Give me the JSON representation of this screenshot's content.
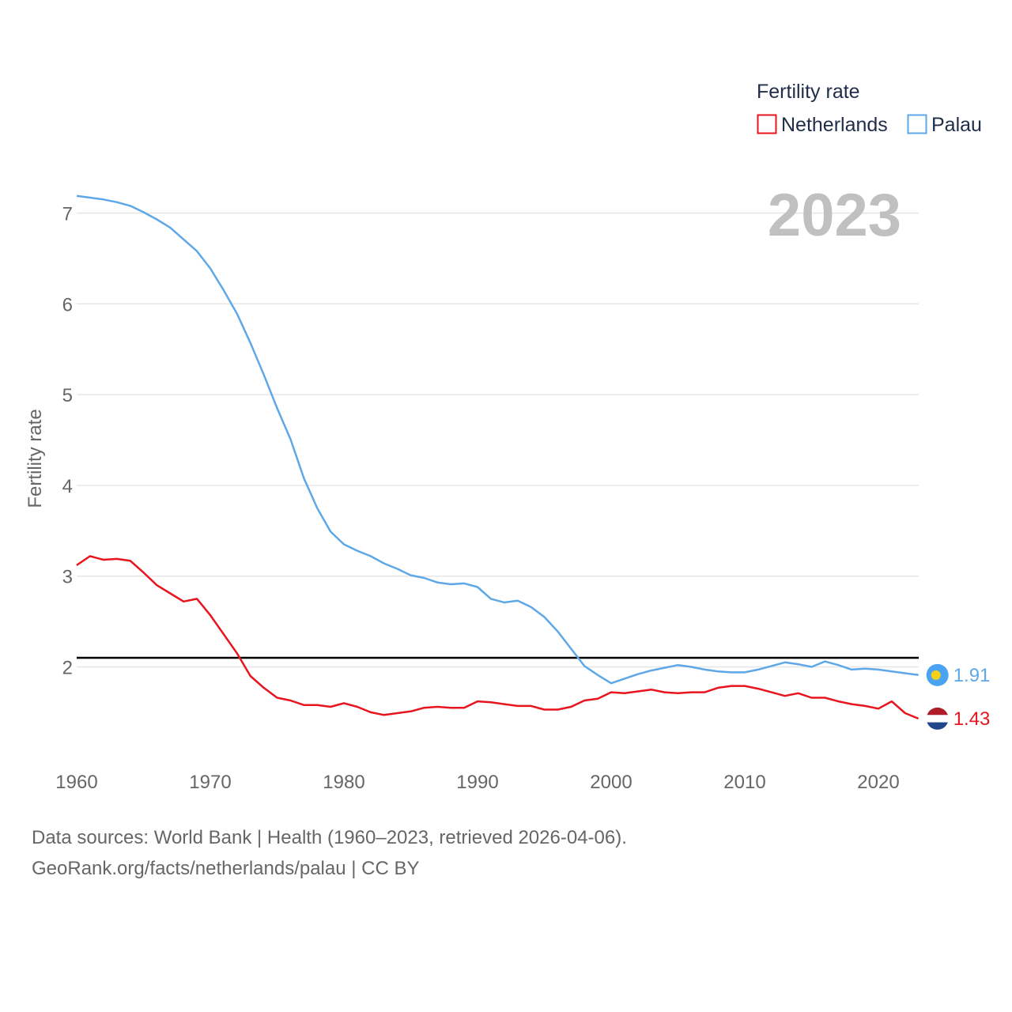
{
  "chart_data": {
    "type": "line",
    "ylabel": "Fertility rate",
    "xlabel": "",
    "xlim": [
      1960,
      2023
    ],
    "ylim": [
      1.0,
      7.3
    ],
    "x_ticks": [
      1960,
      1970,
      1980,
      1990,
      2000,
      2010,
      2020
    ],
    "y_ticks": [
      2,
      3,
      4,
      5,
      6,
      7
    ],
    "grid": true,
    "reference_line": 2.1,
    "year_label": "2023",
    "legend": {
      "title": "Fertility rate",
      "position": "top-right"
    },
    "x": [
      1960,
      1961,
      1962,
      1963,
      1964,
      1965,
      1966,
      1967,
      1968,
      1969,
      1970,
      1971,
      1972,
      1973,
      1974,
      1975,
      1976,
      1977,
      1978,
      1979,
      1980,
      1981,
      1982,
      1983,
      1984,
      1985,
      1986,
      1987,
      1988,
      1989,
      1990,
      1991,
      1992,
      1993,
      1994,
      1995,
      1996,
      1997,
      1998,
      1999,
      2000,
      2001,
      2002,
      2003,
      2004,
      2005,
      2006,
      2007,
      2008,
      2009,
      2010,
      2011,
      2012,
      2013,
      2014,
      2015,
      2016,
      2017,
      2018,
      2019,
      2020,
      2021,
      2022,
      2023
    ],
    "series": [
      {
        "name": "Netherlands",
        "color": "#e8141e",
        "end_label": "1.43",
        "values": [
          3.12,
          3.22,
          3.18,
          3.19,
          3.17,
          3.04,
          2.9,
          2.81,
          2.72,
          2.75,
          2.57,
          2.36,
          2.15,
          1.9,
          1.77,
          1.66,
          1.63,
          1.58,
          1.58,
          1.56,
          1.6,
          1.56,
          1.5,
          1.47,
          1.49,
          1.51,
          1.55,
          1.56,
          1.55,
          1.55,
          1.62,
          1.61,
          1.59,
          1.57,
          1.57,
          1.53,
          1.53,
          1.56,
          1.63,
          1.65,
          1.72,
          1.71,
          1.73,
          1.75,
          1.72,
          1.71,
          1.72,
          1.72,
          1.77,
          1.79,
          1.79,
          1.76,
          1.72,
          1.68,
          1.71,
          1.66,
          1.66,
          1.62,
          1.59,
          1.57,
          1.54,
          1.62,
          1.49,
          1.43
        ]
      },
      {
        "name": "Palau",
        "color": "#5ea8e8",
        "end_label": "1.91",
        "values": [
          7.19,
          7.17,
          7.15,
          7.12,
          7.08,
          7.01,
          6.93,
          6.84,
          6.71,
          6.58,
          6.39,
          6.15,
          5.89,
          5.57,
          5.22,
          4.85,
          4.51,
          4.08,
          3.75,
          3.49,
          3.35,
          3.28,
          3.22,
          3.14,
          3.08,
          3.01,
          2.98,
          2.93,
          2.91,
          2.92,
          2.88,
          2.75,
          2.71,
          2.73,
          2.66,
          2.55,
          2.39,
          2.2,
          2.01,
          1.91,
          1.82,
          1.87,
          1.92,
          1.96,
          1.99,
          2.02,
          2.0,
          1.97,
          1.95,
          1.94,
          1.94,
          1.97,
          2.01,
          2.05,
          2.03,
          2.0,
          2.06,
          2.02,
          1.97,
          1.98,
          1.97,
          1.95,
          1.93,
          1.91
        ]
      }
    ]
  },
  "footer": {
    "sources": "Data sources: World Bank | Health (1960–2023, retrieved 2026-04-06).",
    "link": "GeoRank.org/facts/netherlands/palau | CC BY"
  }
}
